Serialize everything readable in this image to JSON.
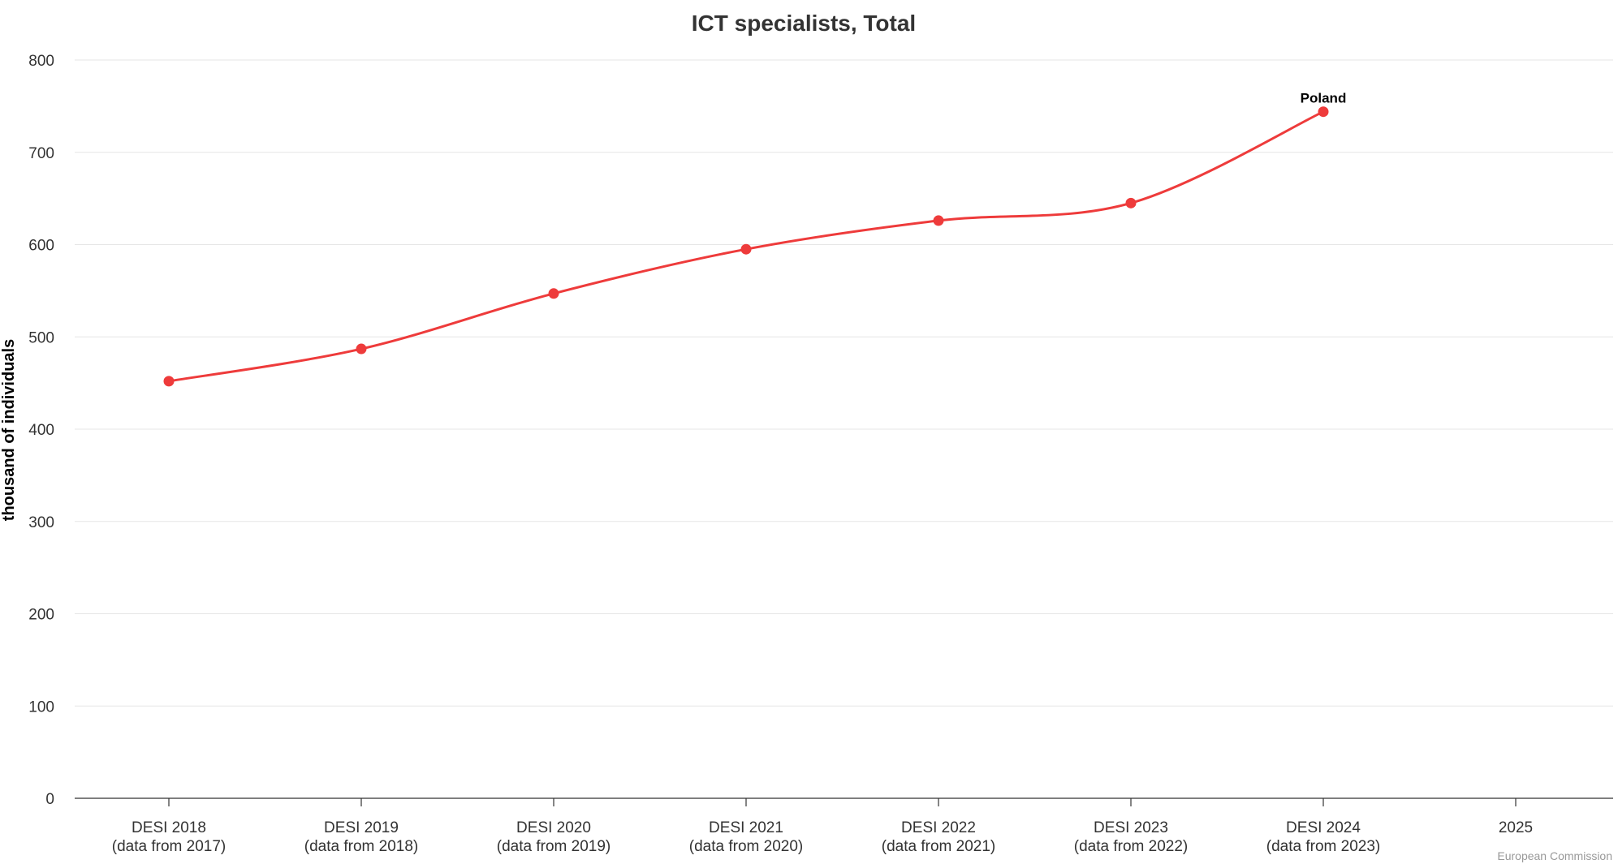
{
  "chart_data": {
    "type": "line",
    "title": "ICT specialists, Total",
    "ylabel": "thousand of individuals",
    "xlabel": "",
    "ylim": [
      0,
      800
    ],
    "yticks": [
      0,
      100,
      200,
      300,
      400,
      500,
      600,
      700,
      800
    ],
    "grid": true,
    "categories": [
      [
        "DESI 2018",
        "(data from 2017)"
      ],
      [
        "DESI 2019",
        "(data from 2018)"
      ],
      [
        "DESI 2020",
        "(data from 2019)"
      ],
      [
        "DESI 2021",
        "(data from 2020)"
      ],
      [
        "DESI 2022",
        "(data from 2021)"
      ],
      [
        "DESI 2023",
        "(data from 2022)"
      ],
      [
        "DESI 2024",
        "(data from 2023)"
      ],
      [
        "2025"
      ]
    ],
    "series": [
      {
        "name": "Poland",
        "color": "#ee3b3b",
        "values": [
          452,
          487,
          547,
          595,
          626,
          645,
          744,
          null
        ]
      }
    ],
    "credits": "European Commission"
  }
}
